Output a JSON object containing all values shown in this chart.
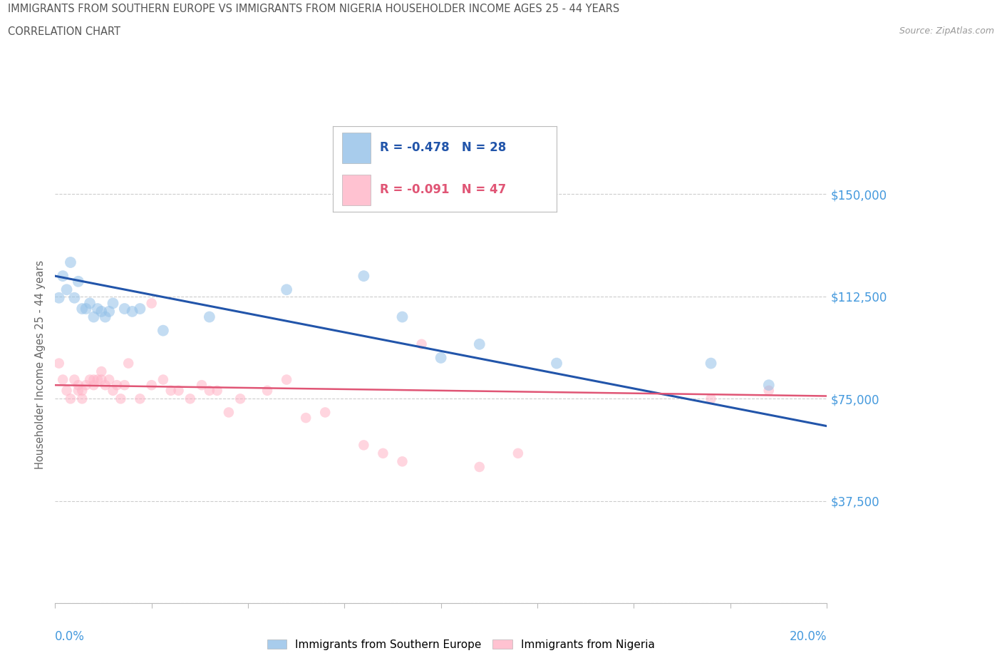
{
  "title_line1": "IMMIGRANTS FROM SOUTHERN EUROPE VS IMMIGRANTS FROM NIGERIA HOUSEHOLDER INCOME AGES 25 - 44 YEARS",
  "title_line2": "CORRELATION CHART",
  "source_text": "Source: ZipAtlas.com",
  "ylabel": "Householder Income Ages 25 - 44 years",
  "xlim": [
    0.0,
    0.2
  ],
  "ylim": [
    0,
    175000
  ],
  "yticks": [
    0,
    37500,
    75000,
    112500,
    150000
  ],
  "ytick_labels": [
    "",
    "$37,500",
    "$75,000",
    "$112,500",
    "$150,000"
  ],
  "legend_blue_R": "R = -0.478",
  "legend_blue_N": "N = 28",
  "legend_pink_R": "R = -0.091",
  "legend_pink_N": "N = 47",
  "blue_color": "#92C0E8",
  "pink_color": "#FFB3C6",
  "trend_blue_color": "#2255AA",
  "trend_pink_color": "#E05575",
  "background_color": "#FFFFFF",
  "grid_color": "#CCCCCC",
  "axis_label_color": "#4499DD",
  "title_color": "#555555",
  "blue_scatter_x": [
    0.001,
    0.002,
    0.003,
    0.004,
    0.005,
    0.006,
    0.007,
    0.008,
    0.009,
    0.01,
    0.011,
    0.012,
    0.013,
    0.014,
    0.015,
    0.018,
    0.02,
    0.022,
    0.028,
    0.04,
    0.06,
    0.08,
    0.09,
    0.1,
    0.11,
    0.13,
    0.17,
    0.185
  ],
  "blue_scatter_y": [
    112000,
    120000,
    115000,
    125000,
    112000,
    118000,
    108000,
    108000,
    110000,
    105000,
    108000,
    107000,
    105000,
    107000,
    110000,
    108000,
    107000,
    108000,
    100000,
    105000,
    115000,
    120000,
    105000,
    90000,
    95000,
    88000,
    88000,
    80000
  ],
  "pink_scatter_x": [
    0.001,
    0.002,
    0.003,
    0.004,
    0.005,
    0.006,
    0.006,
    0.007,
    0.007,
    0.008,
    0.009,
    0.01,
    0.01,
    0.011,
    0.012,
    0.012,
    0.013,
    0.014,
    0.015,
    0.016,
    0.017,
    0.018,
    0.019,
    0.022,
    0.025,
    0.025,
    0.028,
    0.03,
    0.032,
    0.035,
    0.038,
    0.04,
    0.042,
    0.045,
    0.048,
    0.055,
    0.06,
    0.065,
    0.07,
    0.08,
    0.085,
    0.09,
    0.095,
    0.11,
    0.12,
    0.17,
    0.185
  ],
  "pink_scatter_y": [
    88000,
    82000,
    78000,
    75000,
    82000,
    80000,
    78000,
    78000,
    75000,
    80000,
    82000,
    80000,
    82000,
    82000,
    82000,
    85000,
    80000,
    82000,
    78000,
    80000,
    75000,
    80000,
    88000,
    75000,
    110000,
    80000,
    82000,
    78000,
    78000,
    75000,
    80000,
    78000,
    78000,
    70000,
    75000,
    78000,
    82000,
    68000,
    70000,
    58000,
    55000,
    52000,
    95000,
    50000,
    55000,
    75000,
    78000
  ],
  "blue_marker_size": 130,
  "pink_marker_size": 110,
  "blue_alpha": 0.55,
  "pink_alpha": 0.55,
  "trend_blue_x0": 0.0,
  "trend_blue_y0": 120000,
  "trend_blue_x1": 0.2,
  "trend_blue_y1": 65000,
  "trend_pink_x0": 0.0,
  "trend_pink_y0": 80000,
  "trend_pink_x1": 0.2,
  "trend_pink_y1": 76000
}
